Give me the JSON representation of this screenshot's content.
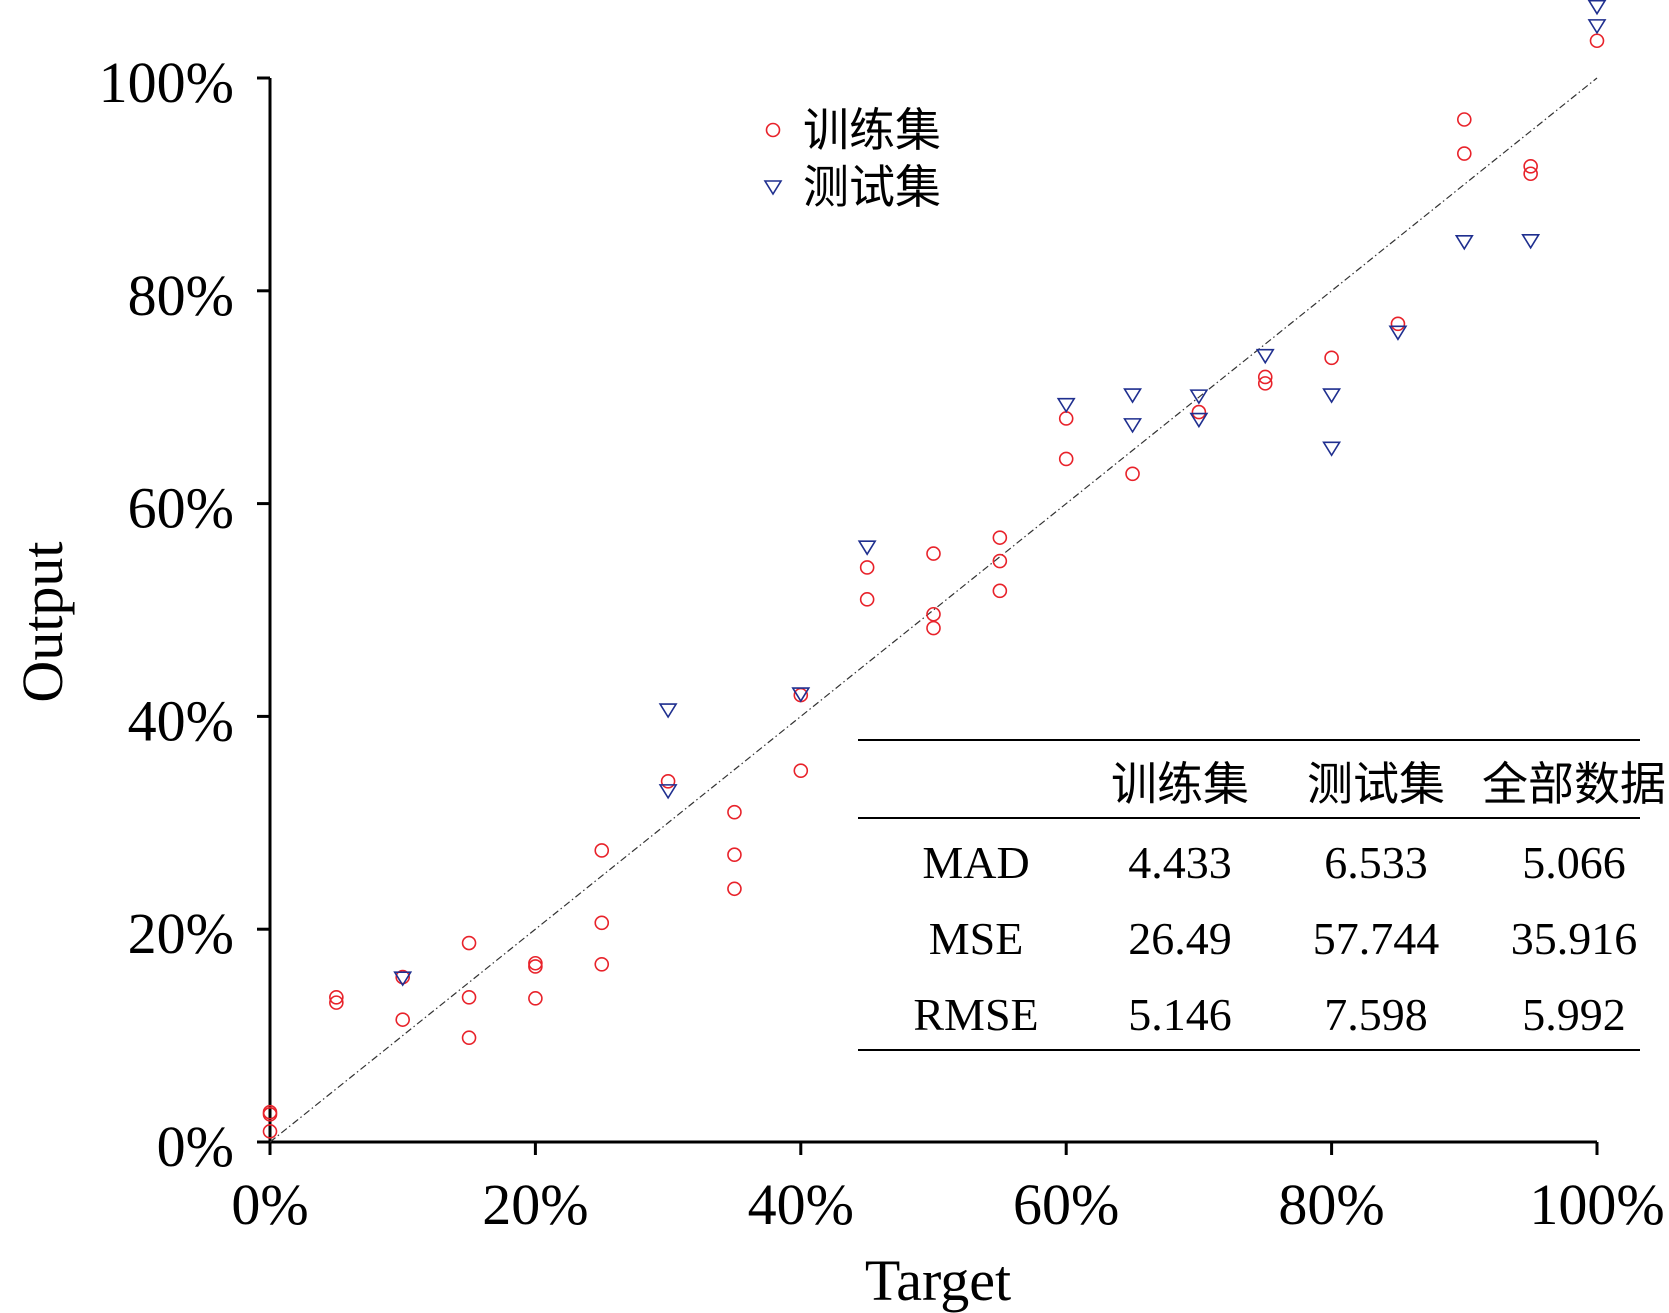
{
  "chart_data": {
    "type": "scatter",
    "title": "",
    "xlabel": "Target",
    "ylabel": "Output",
    "xlim": [
      0,
      100
    ],
    "ylim": [
      0,
      100
    ],
    "x_ticks": [
      "0%",
      "20%",
      "40%",
      "60%",
      "80%",
      "100%"
    ],
    "y_ticks": [
      "0%",
      "20%",
      "40%",
      "60%",
      "80%",
      "100%"
    ],
    "grid": false,
    "reference_line": "y = x (dash-dot)",
    "legend_position": "top-center",
    "series": [
      {
        "name": "训练集",
        "marker": "circle",
        "color": "#e8222a",
        "points": [
          [
            0,
            1.0
          ],
          [
            0,
            2.6
          ],
          [
            0,
            2.8
          ],
          [
            5,
            13.1
          ],
          [
            5,
            13.6
          ],
          [
            10,
            11.5
          ],
          [
            10,
            15.5
          ],
          [
            15,
            9.8
          ],
          [
            15,
            13.6
          ],
          [
            15,
            18.7
          ],
          [
            20,
            13.5
          ],
          [
            20,
            16.5
          ],
          [
            20,
            16.8
          ],
          [
            25,
            16.7
          ],
          [
            25,
            20.6
          ],
          [
            25,
            27.4
          ],
          [
            30,
            33.9
          ],
          [
            35,
            23.8
          ],
          [
            35,
            27.0
          ],
          [
            35,
            31.0
          ],
          [
            40,
            34.9
          ],
          [
            40,
            42.0
          ],
          [
            45,
            51.0
          ],
          [
            45,
            54.0
          ],
          [
            50,
            48.3
          ],
          [
            50,
            49.6
          ],
          [
            50,
            55.3
          ],
          [
            55,
            51.8
          ],
          [
            55,
            54.6
          ],
          [
            55,
            56.8
          ],
          [
            60,
            64.2
          ],
          [
            60,
            68.0
          ],
          [
            65,
            62.8
          ],
          [
            70,
            68.6
          ],
          [
            75,
            71.3
          ],
          [
            75,
            71.9
          ],
          [
            80,
            73.7
          ],
          [
            85,
            76.9
          ],
          [
            90,
            92.9
          ],
          [
            90,
            96.1
          ],
          [
            95,
            91.0
          ],
          [
            95,
            91.7
          ],
          [
            100,
            103.5
          ]
        ]
      },
      {
        "name": "测试集",
        "marker": "triangle-down",
        "color": "#1f2f8f",
        "points": [
          [
            10,
            15.4
          ],
          [
            30,
            33.0
          ],
          [
            30,
            40.6
          ],
          [
            40,
            42.1
          ],
          [
            45,
            55.9
          ],
          [
            60,
            69.3
          ],
          [
            65,
            67.4
          ],
          [
            65,
            70.2
          ],
          [
            70,
            67.9
          ],
          [
            70,
            70.1
          ],
          [
            75,
            73.9
          ],
          [
            80,
            65.2
          ],
          [
            80,
            70.2
          ],
          [
            85,
            76.1
          ],
          [
            90,
            84.6
          ],
          [
            95,
            84.7
          ],
          [
            100,
            104.9
          ],
          [
            100,
            106.7
          ]
        ]
      }
    ]
  },
  "stats_table": {
    "columns": [
      "",
      "训练集",
      "测试集",
      "全部数据"
    ],
    "rows": [
      {
        "label": "MAD",
        "values": [
          "4.433",
          "6.533",
          "5.066"
        ]
      },
      {
        "label": "MSE",
        "values": [
          "26.49",
          "57.744",
          "35.916"
        ]
      },
      {
        "label": "RMSE",
        "values": [
          "5.146",
          "7.598",
          "5.992"
        ]
      }
    ]
  }
}
